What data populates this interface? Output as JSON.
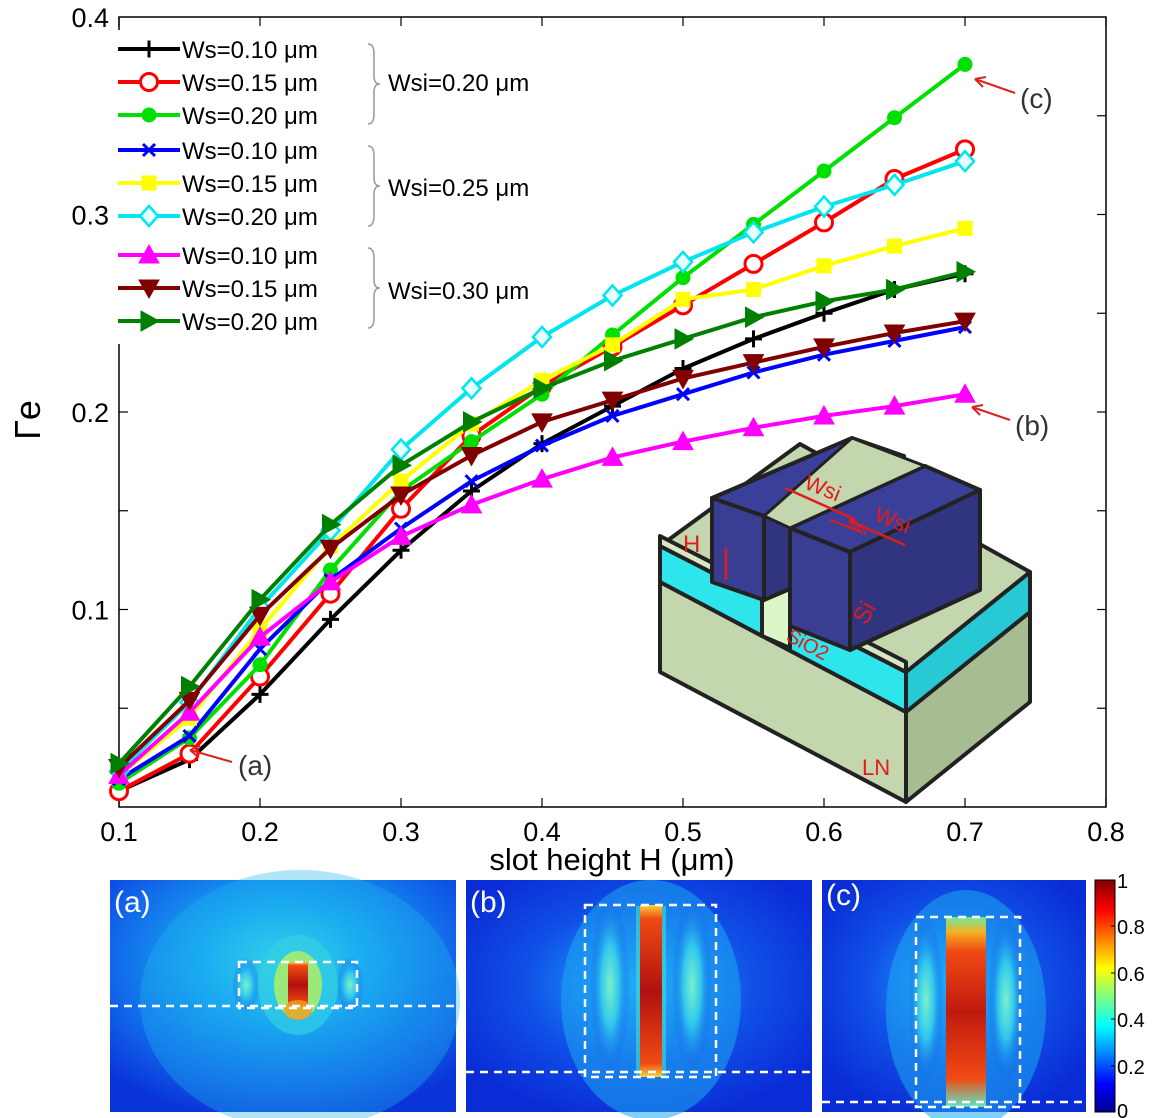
{
  "chart_data": {
    "type": "line",
    "xlabel": "slot height H (μm)",
    "ylabel": "Γe",
    "xlim": [
      0.1,
      0.8
    ],
    "ylim": [
      0,
      0.4
    ],
    "xticks": [
      "0.1",
      "0.2",
      "0.3",
      "0.4",
      "0.5",
      "0.6",
      "0.7",
      "0.8"
    ],
    "yticks": [
      "0.1",
      "0.2",
      "0.3",
      "0.4"
    ],
    "grid": false,
    "legend_position": "top-left",
    "x": [
      0.1,
      0.15,
      0.2,
      0.25,
      0.3,
      0.35,
      0.4,
      0.45,
      0.5,
      0.55,
      0.6,
      0.65,
      0.7
    ],
    "series": [
      {
        "name": "Ws=0.10 μm",
        "group": "Wsi=0.20 μm",
        "color": "#000000",
        "marker": "plus",
        "values": [
          0.008,
          0.024,
          0.057,
          0.095,
          0.13,
          0.16,
          0.184,
          0.203,
          0.222,
          0.237,
          0.25,
          0.262,
          0.27
        ]
      },
      {
        "name": "Ws=0.15 μm",
        "group": "Wsi=0.20 μm",
        "color": "#ff0000",
        "marker": "circle",
        "values": [
          0.008,
          0.027,
          0.066,
          0.108,
          0.151,
          0.188,
          0.213,
          0.233,
          0.254,
          0.275,
          0.296,
          0.318,
          0.333
        ]
      },
      {
        "name": "Ws=0.20 μm",
        "group": "Wsi=0.20 μm",
        "color": "#00e000",
        "marker": "dot",
        "values": [
          0.012,
          0.035,
          0.072,
          0.12,
          0.16,
          0.185,
          0.209,
          0.239,
          0.268,
          0.295,
          0.322,
          0.349,
          0.376
        ]
      },
      {
        "name": "Ws=0.10 μm",
        "group": "Wsi=0.25 μm",
        "color": "#0000ff",
        "marker": "x",
        "values": [
          0.014,
          0.036,
          0.08,
          0.115,
          0.141,
          0.165,
          0.183,
          0.198,
          0.209,
          0.22,
          0.229,
          0.236,
          0.243
        ]
      },
      {
        "name": "Ws=0.15 μm",
        "group": "Wsi=0.25 μm",
        "color": "#ffff00",
        "marker": "square",
        "values": [
          0.016,
          0.045,
          0.09,
          0.132,
          0.165,
          0.194,
          0.216,
          0.234,
          0.257,
          0.262,
          0.274,
          0.284,
          0.293
        ]
      },
      {
        "name": "Ws=0.20 μm",
        "group": "Wsi=0.25 μm",
        "color": "#00e5ee",
        "marker": "diamond",
        "values": [
          0.018,
          0.053,
          0.101,
          0.14,
          0.181,
          0.212,
          0.238,
          0.259,
          0.276,
          0.291,
          0.304,
          0.315,
          0.327
        ]
      },
      {
        "name": "Ws=0.10 μm",
        "group": "Wsi=0.30 μm",
        "color": "#ff00ff",
        "marker": "triangle-up",
        "values": [
          0.016,
          0.048,
          0.086,
          0.114,
          0.137,
          0.153,
          0.166,
          0.177,
          0.185,
          0.192,
          0.198,
          0.203,
          0.209
        ]
      },
      {
        "name": "Ws=0.15 μm",
        "group": "Wsi=0.30 μm",
        "color": "#800000",
        "marker": "triangle-down",
        "values": [
          0.02,
          0.054,
          0.097,
          0.131,
          0.158,
          0.178,
          0.195,
          0.206,
          0.217,
          0.225,
          0.233,
          0.24,
          0.246
        ]
      },
      {
        "name": "Ws=0.20 μm",
        "group": "Wsi=0.30 μm",
        "color": "#008000",
        "marker": "triangle-right",
        "values": [
          0.022,
          0.061,
          0.105,
          0.143,
          0.173,
          0.195,
          0.212,
          0.226,
          0.237,
          0.248,
          0.256,
          0.262,
          0.271
        ]
      }
    ],
    "legend_groups": [
      "Wsi=0.20 μm",
      "Wsi=0.25 μm",
      "Wsi=0.30 μm"
    ],
    "annotations": [
      {
        "text": "(a)",
        "x": 0.15,
        "y": 0.026
      },
      {
        "text": "(b)",
        "x": 0.7,
        "y": 0.209
      },
      {
        "text": "(c)",
        "x": 0.7,
        "y": 0.376
      }
    ]
  },
  "inset": {
    "labels": {
      "h": "H",
      "wsi_left": "Wsi",
      "ws": "Ws",
      "wsi_right": "Wsi",
      "si": "Si",
      "sio2": "SiO2",
      "ln": "LN"
    }
  },
  "field_maps": {
    "panels": [
      {
        "label": "(a)"
      },
      {
        "label": "(b)"
      },
      {
        "label": "(c)"
      }
    ],
    "colorbar": {
      "ticks": [
        "1",
        "0.8",
        "0.6",
        "0.4",
        "0.2",
        "0"
      ],
      "range": [
        0,
        1
      ]
    }
  }
}
